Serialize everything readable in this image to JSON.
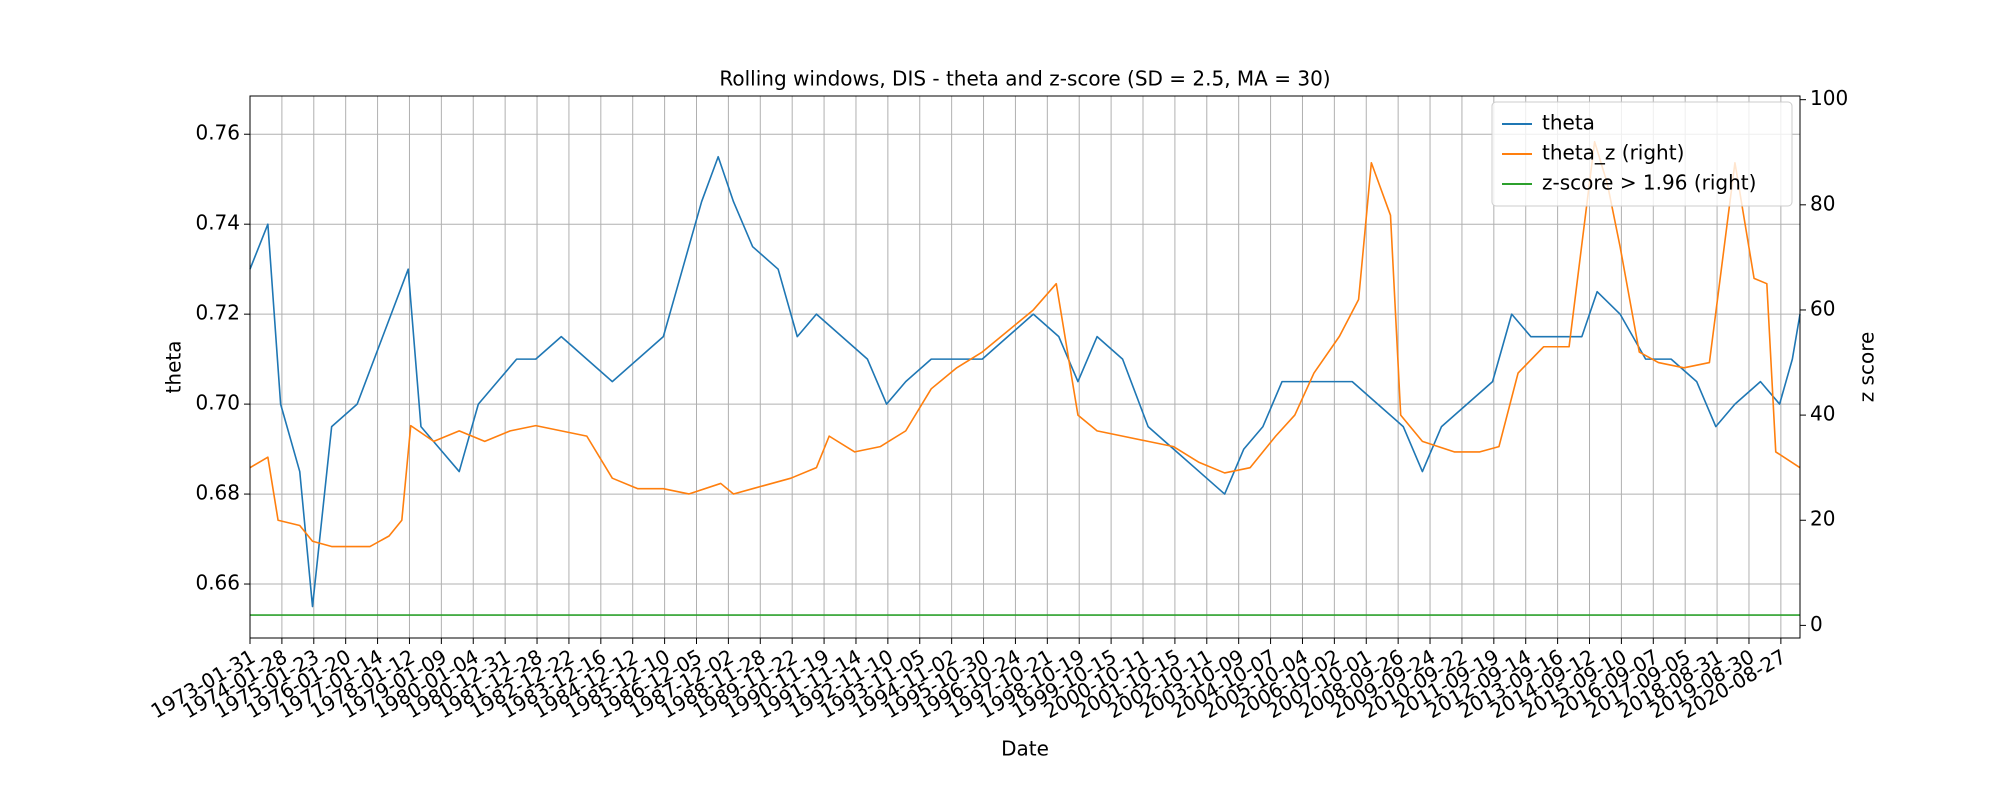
{
  "chart_data": {
    "type": "line",
    "title": "Rolling windows, DIS - theta and z-score (SD = 2.5, MA = 30)",
    "xlabel": "Date",
    "ylabel": "theta",
    "y2label": "z score",
    "grid": true,
    "legend": "upper right",
    "xlim": [
      0,
      12150
    ],
    "xticks": [
      {
        "value": 0,
        "label": "1973-01-31"
      },
      {
        "value": 250,
        "label": "1974-01-28"
      },
      {
        "value": 500,
        "label": "1975-01-23"
      },
      {
        "value": 750,
        "label": "1976-01-20"
      },
      {
        "value": 1000,
        "label": "1977-01-14"
      },
      {
        "value": 1250,
        "label": "1978-01-12"
      },
      {
        "value": 1500,
        "label": "1979-01-09"
      },
      {
        "value": 1750,
        "label": "1980-01-04"
      },
      {
        "value": 2000,
        "label": "1980-12-31"
      },
      {
        "value": 2250,
        "label": "1981-12-28"
      },
      {
        "value": 2500,
        "label": "1982-12-22"
      },
      {
        "value": 2750,
        "label": "1983-12-16"
      },
      {
        "value": 3000,
        "label": "1984-12-12"
      },
      {
        "value": 3250,
        "label": "1985-12-10"
      },
      {
        "value": 3500,
        "label": "1986-12-05"
      },
      {
        "value": 3750,
        "label": "1987-12-02"
      },
      {
        "value": 4000,
        "label": "1988-11-28"
      },
      {
        "value": 4250,
        "label": "1989-11-22"
      },
      {
        "value": 4500,
        "label": "1990-11-19"
      },
      {
        "value": 4750,
        "label": "1991-11-14"
      },
      {
        "value": 5000,
        "label": "1992-11-10"
      },
      {
        "value": 5250,
        "label": "1993-11-05"
      },
      {
        "value": 5500,
        "label": "1994-11-02"
      },
      {
        "value": 5750,
        "label": "1995-10-30"
      },
      {
        "value": 6000,
        "label": "1996-10-24"
      },
      {
        "value": 6250,
        "label": "1997-10-21"
      },
      {
        "value": 6500,
        "label": "1998-10-19"
      },
      {
        "value": 6750,
        "label": "1999-10-15"
      },
      {
        "value": 7000,
        "label": "2000-10-11"
      },
      {
        "value": 7250,
        "label": "2001-10-15"
      },
      {
        "value": 7500,
        "label": "2002-10-11"
      },
      {
        "value": 7750,
        "label": "2003-10-09"
      },
      {
        "value": 8000,
        "label": "2004-10-07"
      },
      {
        "value": 8250,
        "label": "2005-10-04"
      },
      {
        "value": 8500,
        "label": "2006-10-02"
      },
      {
        "value": 8750,
        "label": "2007-10-01"
      },
      {
        "value": 9000,
        "label": "2008-09-26"
      },
      {
        "value": 9250,
        "label": "2009-09-24"
      },
      {
        "value": 9500,
        "label": "2010-09-22"
      },
      {
        "value": 9750,
        "label": "2011-09-19"
      },
      {
        "value": 10000,
        "label": "2012-09-14"
      },
      {
        "value": 10250,
        "label": "2013-09-16"
      },
      {
        "value": 10500,
        "label": "2014-09-12"
      },
      {
        "value": 10750,
        "label": "2015-09-10"
      },
      {
        "value": 11000,
        "label": "2016-09-07"
      },
      {
        "value": 11250,
        "label": "2017-09-05"
      },
      {
        "value": 11500,
        "label": "2018-08-31"
      },
      {
        "value": 11750,
        "label": "2019-08-30"
      },
      {
        "value": 12000,
        "label": "2020-08-27"
      }
    ],
    "ylim": [
      0.648,
      0.7685
    ],
    "yticks": [
      0.66,
      0.68,
      {
        "value": 0.7,
        "label": "0.70"
      },
      0.72,
      0.74,
      0.76
    ],
    "y2lim": [
      -2.4,
      100.7
    ],
    "y2ticks": [
      0,
      20,
      40,
      60,
      80,
      100
    ],
    "series": [
      {
        "name": "theta",
        "color": "#1f77b4",
        "x": [
          0,
          140,
          240,
          390,
          490,
          640,
          840,
          1040,
          1240,
          1340,
          1490,
          1640,
          1790,
          1940,
          2090,
          2240,
          2440,
          2640,
          2840,
          3040,
          3240,
          3390,
          3540,
          3670,
          3790,
          3940,
          4140,
          4290,
          4440,
          4640,
          4840,
          4990,
          5140,
          5340,
          5540,
          5740,
          5940,
          6140,
          6340,
          6490,
          6640,
          6840,
          7040,
          7240,
          7440,
          7640,
          7790,
          7940,
          8090,
          8240,
          8440,
          8640,
          8840,
          9040,
          9190,
          9340,
          9540,
          9740,
          9890,
          10040,
          10240,
          10440,
          10560,
          10740,
          10940,
          11140,
          11340,
          11490,
          11640,
          11840,
          11990,
          12090,
          12150
        ],
        "values": [
          0.73,
          0.74,
          0.7,
          0.685,
          0.655,
          0.695,
          0.7,
          0.715,
          0.73,
          0.695,
          0.69,
          0.685,
          0.7,
          0.705,
          0.71,
          0.71,
          0.715,
          0.71,
          0.705,
          0.71,
          0.715,
          0.73,
          0.745,
          0.755,
          0.745,
          0.735,
          0.73,
          0.715,
          0.72,
          0.715,
          0.71,
          0.7,
          0.705,
          0.71,
          0.71,
          0.71,
          0.715,
          0.72,
          0.715,
          0.705,
          0.715,
          0.71,
          0.695,
          0.69,
          0.685,
          0.68,
          0.69,
          0.695,
          0.705,
          0.705,
          0.705,
          0.705,
          0.7,
          0.695,
          0.685,
          0.695,
          0.7,
          0.705,
          0.72,
          0.715,
          0.715,
          0.715,
          0.725,
          0.72,
          0.71,
          0.71,
          0.705,
          0.695,
          0.7,
          0.705,
          0.7,
          0.71,
          0.72
        ]
      },
      {
        "name": "theta_z (right)",
        "color": "#ff7f0e",
        "axis": "y2",
        "x": [
          0,
          140,
          220,
          390,
          490,
          640,
          940,
          1090,
          1190,
          1260,
          1440,
          1640,
          1840,
          2040,
          2240,
          2440,
          2640,
          2840,
          3040,
          3240,
          3440,
          3690,
          3790,
          3940,
          4240,
          4440,
          4540,
          4740,
          4940,
          5140,
          5340,
          5540,
          5740,
          5940,
          6140,
          6320,
          6490,
          6640,
          6840,
          7040,
          7240,
          7440,
          7640,
          7840,
          8040,
          8190,
          8340,
          8540,
          8690,
          8790,
          8940,
          9020,
          9190,
          9440,
          9640,
          9790,
          9940,
          10140,
          10340,
          10540,
          10640,
          10740,
          10890,
          11040,
          11240,
          11440,
          11640,
          11790,
          11890,
          11960,
          12150
        ],
        "values": [
          30,
          32,
          20,
          19,
          16,
          15,
          15,
          17,
          20,
          38,
          35,
          37,
          35,
          37,
          38,
          37,
          36,
          28,
          26,
          26,
          25,
          27,
          25,
          26,
          28,
          30,
          36,
          33,
          34,
          37,
          45,
          49,
          52,
          56,
          60,
          65,
          40,
          37,
          36,
          35,
          34,
          31,
          29,
          30,
          36,
          40,
          48,
          55,
          62,
          88,
          78,
          40,
          35,
          33,
          33,
          34,
          48,
          53,
          53,
          92,
          84,
          72,
          52,
          50,
          49,
          50,
          88,
          66,
          65,
          33,
          30
        ]
      },
      {
        "name": "z-score > 1.96 (right)",
        "color": "#2ca02c",
        "axis": "y2",
        "x": [
          0,
          12150
        ],
        "values": [
          1.96,
          1.96
        ]
      }
    ]
  }
}
